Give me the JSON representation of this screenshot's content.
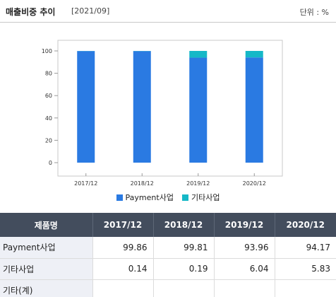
{
  "header": {
    "title": "매출비중 추이",
    "date": "[2021/09]",
    "unit": "단위 : %"
  },
  "chart_data": {
    "type": "bar",
    "stacked": true,
    "categories": [
      "2017/12",
      "2018/12",
      "2019/12",
      "2020/12"
    ],
    "series": [
      {
        "name": "Payment사업",
        "color": "#2a7ae2",
        "values": [
          99.86,
          99.81,
          93.96,
          94.17
        ]
      },
      {
        "name": "기타사업",
        "color": "#15b8c7",
        "values": [
          0.14,
          0.19,
          6.04,
          5.83
        ]
      }
    ],
    "ylim": [
      0,
      100
    ],
    "yticks": [
      "0",
      "20",
      "40",
      "60",
      "80",
      "100"
    ],
    "grid": false,
    "legend": "bottom"
  },
  "table": {
    "columns": [
      "제품명",
      "2017/12",
      "2018/12",
      "2019/12",
      "2020/12"
    ],
    "rows": [
      {
        "name": "Payment사업",
        "values": [
          "99.86",
          "99.81",
          "93.96",
          "94.17"
        ]
      },
      {
        "name": "기타사업",
        "values": [
          "0.14",
          "0.19",
          "6.04",
          "5.83"
        ]
      },
      {
        "name": "기타(계)",
        "values": [
          "",
          "",
          "",
          ""
        ]
      }
    ]
  }
}
